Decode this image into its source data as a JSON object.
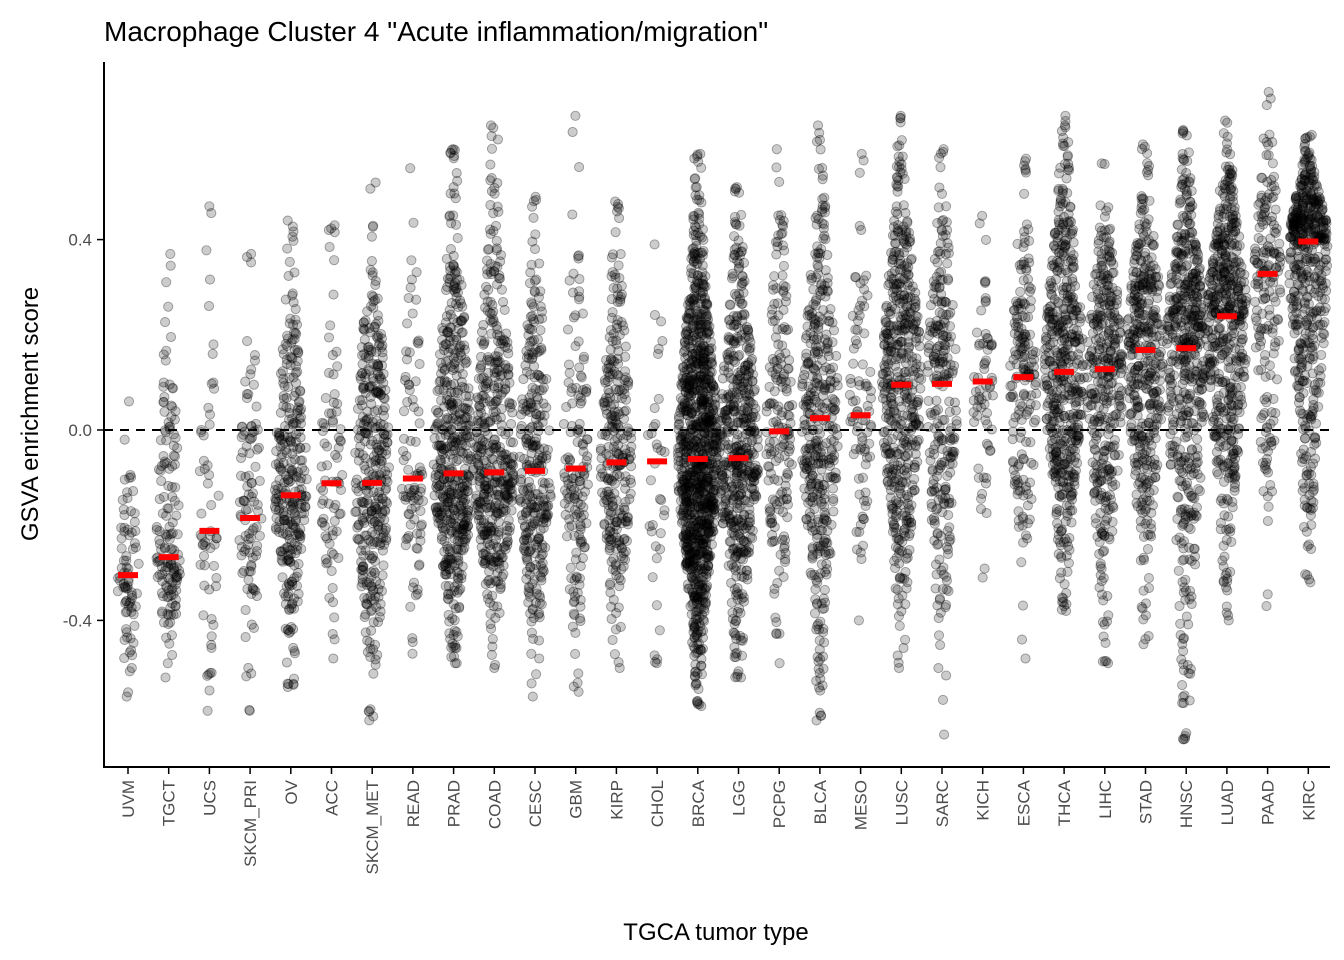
{
  "chart_data": {
    "type": "scatter",
    "subtype": "jittered strip plot with median markers",
    "title": "Macrophage Cluster 4 \"Acute inflammation/migration\"",
    "xlabel": "TGCA tumor type",
    "ylabel": "GSVA enrichment score",
    "ylim": [
      -0.7,
      0.75
    ],
    "yticks": [
      -0.4,
      0.0,
      0.4
    ],
    "ytick_labels": [
      "-0.4",
      "0.0",
      "0.4"
    ],
    "reference_line": {
      "y": 0.0,
      "style": "dashed"
    },
    "grid": false,
    "legend": "none",
    "colors": {
      "points": "#000000",
      "median": "#ff0000",
      "axis": "#000000"
    },
    "categories": [
      "UVM",
      "TGCT",
      "UCS",
      "SKCM_PRI",
      "OV",
      "ACC",
      "SKCM_MET",
      "READ",
      "PRAD",
      "COAD",
      "CESC",
      "GBM",
      "KIRP",
      "CHOL",
      "BRCA",
      "LGG",
      "PCPG",
      "BLCA",
      "MESO",
      "LUSC",
      "SARC",
      "KICH",
      "ESCA",
      "THCA",
      "LIHC",
      "STAD",
      "HNSC",
      "LUAD",
      "PAAD",
      "KIRC"
    ],
    "medians": [
      -0.305,
      -0.267,
      -0.212,
      -0.185,
      -0.137,
      -0.112,
      -0.111,
      -0.102,
      -0.091,
      -0.089,
      -0.086,
      -0.081,
      -0.068,
      -0.066,
      -0.061,
      -0.059,
      -0.003,
      0.025,
      0.031,
      0.095,
      0.097,
      0.102,
      0.111,
      0.122,
      0.128,
      0.168,
      0.172,
      0.239,
      0.328,
      0.396
    ],
    "ymin": [
      -0.56,
      -0.52,
      -0.59,
      -0.59,
      -0.54,
      -0.48,
      -0.61,
      -0.47,
      -0.49,
      -0.5,
      -0.56,
      -0.55,
      -0.5,
      -0.49,
      -0.58,
      -0.52,
      -0.49,
      -0.61,
      -0.4,
      -0.5,
      -0.64,
      -0.31,
      -0.48,
      -0.38,
      -0.49,
      -0.45,
      -0.65,
      -0.4,
      -0.37,
      -0.32
    ],
    "ymax": [
      0.06,
      0.37,
      0.47,
      0.37,
      0.44,
      0.43,
      0.52,
      0.55,
      0.59,
      0.64,
      0.49,
      0.66,
      0.48,
      0.39,
      0.58,
      0.51,
      0.59,
      0.64,
      0.58,
      0.66,
      0.59,
      0.45,
      0.57,
      0.66,
      0.56,
      0.6,
      0.63,
      0.65,
      0.71,
      0.62
    ],
    "n": [
      80,
      150,
      57,
      100,
      300,
      79,
      360,
      90,
      500,
      450,
      300,
      150,
      280,
      36,
      1100,
      520,
      180,
      400,
      85,
      500,
      260,
      66,
      180,
      510,
      370,
      410,
      520,
      520,
      180,
      530
    ]
  }
}
